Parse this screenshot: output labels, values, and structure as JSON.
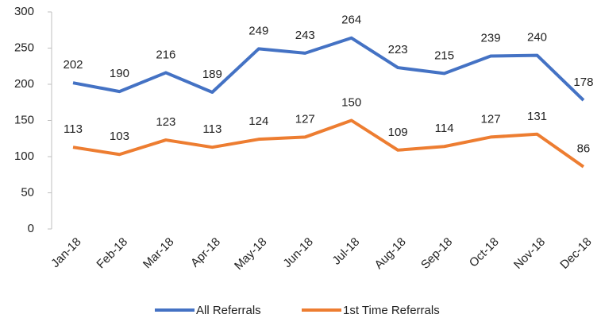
{
  "chart_data": {
    "type": "line",
    "categories": [
      "Jan-18",
      "Feb-18",
      "Mar-18",
      "Apr-18",
      "May-18",
      "Jun-18",
      "Jul-18",
      "Aug-18",
      "Sep-18",
      "Oct-18",
      "Nov-18",
      "Dec-18"
    ],
    "series": [
      {
        "name": "All Referrals",
        "color": "#4472c4",
        "values": [
          202,
          190,
          216,
          189,
          249,
          243,
          264,
          223,
          215,
          239,
          240,
          178
        ]
      },
      {
        "name": "1st Time Referrals",
        "color": "#ed7d31",
        "values": [
          113,
          103,
          123,
          113,
          124,
          127,
          150,
          109,
          114,
          127,
          131,
          86
        ]
      }
    ],
    "ylim": [
      0,
      300
    ],
    "yticks": [
      0,
      50,
      100,
      150,
      200,
      250,
      300
    ],
    "grid": false,
    "legend": "bottom"
  }
}
